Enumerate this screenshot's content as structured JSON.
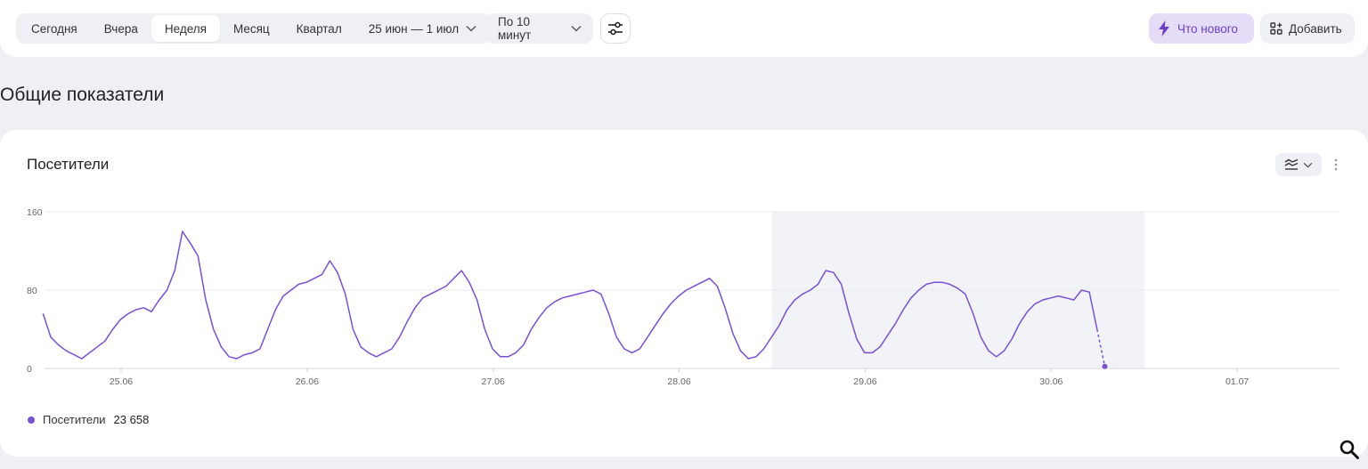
{
  "toolbar": {
    "periods": [
      {
        "label": "Сегодня",
        "active": false
      },
      {
        "label": "Вчера",
        "active": false
      },
      {
        "label": "Неделя",
        "active": true
      },
      {
        "label": "Месяц",
        "active": false
      },
      {
        "label": "Квартал",
        "active": false
      }
    ],
    "date_range": "25 июн — 1 июл",
    "granularity": "По 10 минут",
    "whats_new": "Что нового",
    "add": "Добавить"
  },
  "section_title": "Общие показатели",
  "card": {
    "title": "Посетители"
  },
  "colors": {
    "accent": "#7a4fd6",
    "whats_new_bg": "#e5dcf7",
    "highlight_bg": "#f2f3f6"
  },
  "chart_data": {
    "type": "line",
    "title": "Посетители",
    "x_tick_labels": [
      "25.06",
      "26.06",
      "27.06",
      "28.06",
      "29.06",
      "30.06",
      "01.07"
    ],
    "y_tick_labels": [
      "0",
      "80",
      "160"
    ],
    "ylim": [
      0,
      160
    ],
    "xlim_days": [
      -0.45,
      6.55
    ],
    "grid": true,
    "highlighted_range_days": [
      3.5,
      5.5
    ],
    "legend": {
      "position": "bottom-left",
      "entries": [
        {
          "name": "Посетители",
          "total": "23 658"
        }
      ]
    },
    "series": [
      {
        "name": "Посетители",
        "interval_minutes": 60,
        "start_day_offset": -0.42,
        "values": [
          56,
          32,
          24,
          18,
          14,
          10,
          16,
          22,
          28,
          40,
          50,
          56,
          60,
          62,
          58,
          70,
          80,
          100,
          140,
          128,
          115,
          70,
          40,
          22,
          12,
          10,
          14,
          16,
          20,
          40,
          60,
          74,
          80,
          86,
          88,
          92,
          96,
          110,
          98,
          76,
          40,
          22,
          16,
          12,
          16,
          20,
          32,
          48,
          62,
          72,
          76,
          80,
          84,
          92,
          100,
          88,
          70,
          40,
          20,
          12,
          12,
          16,
          24,
          40,
          52,
          62,
          68,
          72,
          74,
          76,
          78,
          80,
          76,
          56,
          32,
          20,
          16,
          20,
          32,
          44,
          56,
          66,
          74,
          80,
          84,
          88,
          92,
          84,
          62,
          36,
          18,
          10,
          12,
          20,
          32,
          44,
          60,
          70,
          76,
          80,
          86,
          100,
          98,
          86,
          56,
          30,
          16,
          16,
          22,
          34,
          46,
          60,
          72,
          80,
          86,
          88,
          88,
          86,
          82,
          76,
          56,
          32,
          18,
          12,
          18,
          30,
          46,
          58,
          66,
          70,
          72,
          74,
          72,
          70,
          80,
          78,
          40,
          2
        ]
      }
    ]
  },
  "search_icon": "search-icon"
}
